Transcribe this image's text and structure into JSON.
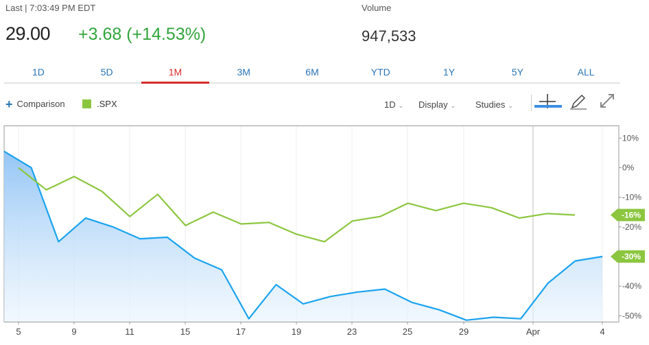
{
  "quote": {
    "last_label": "Last | 7:03:49 PM EDT",
    "price": "29.00",
    "change": "+3.68 (+14.53%)",
    "volume_label": "Volume",
    "volume": "947,533",
    "change_color": "#31a53b"
  },
  "ranges": [
    "1D",
    "5D",
    "1M",
    "3M",
    "6M",
    "YTD",
    "1Y",
    "5Y",
    "ALL"
  ],
  "active_range": "1M",
  "toolbar": {
    "comparison_label": "Comparison",
    "legend_label": ".SPX",
    "interval_label": "1D",
    "display_label": "Display",
    "studies_label": "Studies",
    "icons": [
      "plus-icon",
      "crosshair-icon",
      "pencil-icon",
      "expand-icon"
    ]
  },
  "chart_data": {
    "type": "line",
    "x_tick_labels": [
      "5",
      "9",
      "11",
      "15",
      "17",
      "19",
      "23",
      "25",
      "29",
      "Apr",
      "4"
    ],
    "y_tick_labels": [
      "10%",
      "0%",
      "-10%",
      "-20%",
      "-30%",
      "-40%",
      "-50%"
    ],
    "ylim": [
      -52,
      14
    ],
    "y_ticks": [
      10,
      0,
      -10,
      -20,
      -30,
      -40,
      -50
    ],
    "grid": true,
    "series": [
      {
        "name": "",
        "color": "#1aa3ef",
        "fill": true,
        "values": [
          5.5,
          0,
          -25,
          -17,
          -20,
          -24,
          -23.5,
          -30.5,
          -34.5,
          -51,
          -39.5,
          -46,
          -43.5,
          -42,
          -41,
          -45.5,
          -48,
          -51.5,
          -50.5,
          -51,
          -39,
          -31.5,
          -30
        ]
      },
      {
        "name": ".SPX",
        "color": "#8cc63f",
        "fill": false,
        "values": [
          0,
          -7.5,
          -3,
          -8,
          -16.5,
          -9,
          -19.5,
          -15,
          -19,
          -18.5,
          -22.5,
          -25,
          -18,
          -16.5,
          -12,
          -14.5,
          -12,
          -13.5,
          -17,
          -15.5,
          -16
        ]
      }
    ],
    "end_labels": [
      {
        "text": "-16%",
        "value": -16,
        "color": "#8cc63f"
      },
      {
        "text": "-30%",
        "value": -30,
        "color": "#8cc63f"
      }
    ]
  }
}
